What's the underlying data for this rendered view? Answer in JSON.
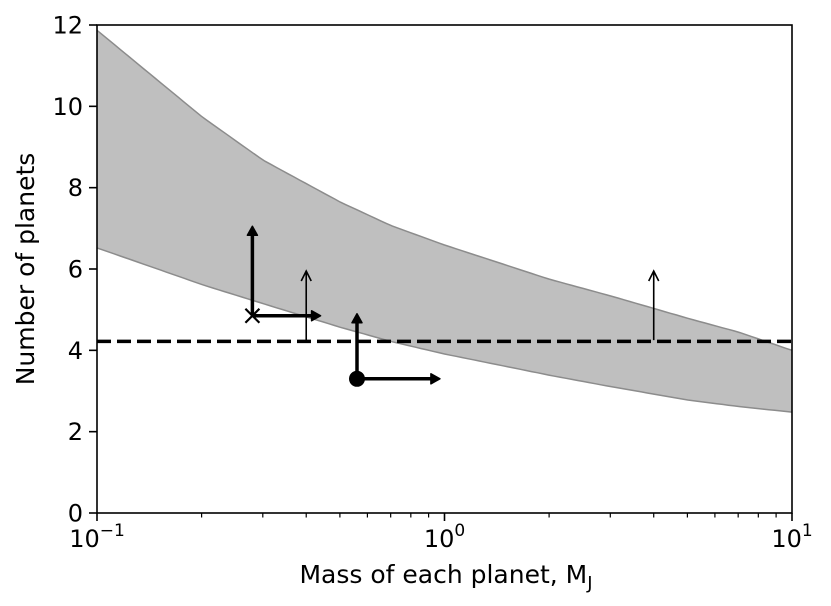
{
  "chart_data": {
    "type": "area",
    "xscale": "log",
    "xlim": [
      0.1,
      10
    ],
    "ylim": [
      0,
      12
    ],
    "xlabel": "Mass of each planet, M",
    "xlabel_subscript": "J",
    "ylabel": "Number of planets",
    "yticks": [
      0,
      2,
      4,
      6,
      8,
      10,
      12
    ],
    "ytick_labels": [
      "0",
      "2",
      "4",
      "6",
      "8",
      "10",
      "12"
    ],
    "xticks": [
      {
        "value": 0.1,
        "base": "10",
        "exp": "−1"
      },
      {
        "value": 1,
        "base": "10",
        "exp": "0"
      },
      {
        "value": 10,
        "base": "10",
        "exp": "1"
      }
    ],
    "band": {
      "color": "#bfbfbf",
      "edge_color": "#8c8c8c",
      "lower": {
        "x": [
          0.1,
          0.2,
          0.3,
          0.5,
          0.7,
          1,
          2,
          3,
          5,
          7,
          10
        ],
        "y": [
          6.52,
          5.62,
          5.15,
          4.57,
          4.22,
          3.91,
          3.39,
          3.11,
          2.78,
          2.62,
          2.48
        ]
      },
      "upper": {
        "x": [
          0.1,
          0.2,
          0.3,
          0.5,
          0.7,
          1,
          2,
          3,
          5,
          7,
          10
        ],
        "y": [
          11.87,
          9.75,
          8.68,
          7.65,
          7.07,
          6.59,
          5.75,
          5.34,
          4.79,
          4.45,
          4.0
        ]
      }
    },
    "reference_line": {
      "y": 4.22,
      "style": "dashed",
      "color": "#000000"
    },
    "markers": [
      {
        "name": "x-marker",
        "shape": "x",
        "x": 0.28,
        "y": 4.85,
        "arrow_up_to": 7.05,
        "arrow_right_to": 0.44,
        "arrow_style": "thick"
      },
      {
        "name": "dot-marker",
        "shape": "circle",
        "x": 0.56,
        "y": 3.3,
        "arrow_up_to": 4.9,
        "arrow_right_to": 0.97,
        "arrow_style": "thick"
      }
    ],
    "limit_arrows": [
      {
        "name": "lower-limit-arrow-1",
        "x": 0.4,
        "y_from": 4.25,
        "y_to": 5.95,
        "arrow_style": "thin"
      },
      {
        "name": "lower-limit-arrow-2",
        "x": 4.0,
        "y_from": 4.25,
        "y_to": 5.95,
        "arrow_style": "thin"
      }
    ]
  }
}
